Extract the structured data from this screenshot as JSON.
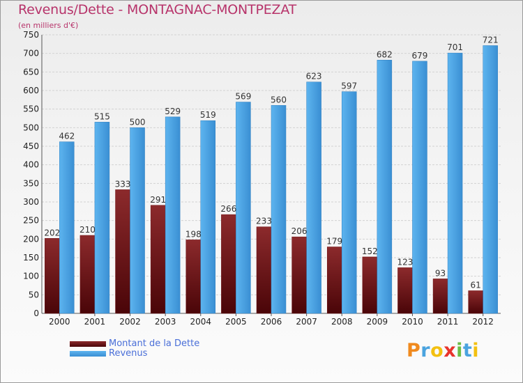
{
  "header": {
    "title": "Revenus/Dette - MONTAGNAC-MONTPEZAT",
    "subtitle": "(en milliers d'€)"
  },
  "logo": {
    "text": "Proxiti",
    "letters": [
      {
        "ch": "P",
        "color": "#f08a1e"
      },
      {
        "ch": "r",
        "color": "#4aa3df"
      },
      {
        "ch": "o",
        "color": "#f3c010"
      },
      {
        "ch": "x",
        "color": "#e8342c"
      },
      {
        "ch": "i",
        "color": "#6cbd45"
      },
      {
        "ch": "t",
        "color": "#4aa3df"
      },
      {
        "ch": "i",
        "color": "#f3c010"
      }
    ]
  },
  "colors": {
    "dette": "#6e0f12",
    "revenus": "#4aa3e6",
    "axis_text": "#222222",
    "value_text": "#333333"
  },
  "chart_data": {
    "type": "bar",
    "categories": [
      "2000",
      "2001",
      "2002",
      "2003",
      "2004",
      "2005",
      "2006",
      "2007",
      "2008",
      "2009",
      "2010",
      "2011",
      "2012"
    ],
    "series": [
      {
        "name": "Montant de la Dette",
        "values": [
          202,
          210,
          333,
          291,
          198,
          266,
          233,
          206,
          179,
          152,
          123,
          93,
          61
        ]
      },
      {
        "name": "Revenus",
        "values": [
          462,
          515,
          500,
          529,
          519,
          569,
          560,
          623,
          597,
          682,
          679,
          701,
          721
        ]
      }
    ],
    "ylim": [
      0,
      750
    ],
    "yticks": [
      0,
      50,
      100,
      150,
      200,
      250,
      300,
      350,
      400,
      450,
      500,
      550,
      600,
      650,
      700,
      750
    ],
    "grid": true,
    "legend_position": "bottom-left"
  }
}
